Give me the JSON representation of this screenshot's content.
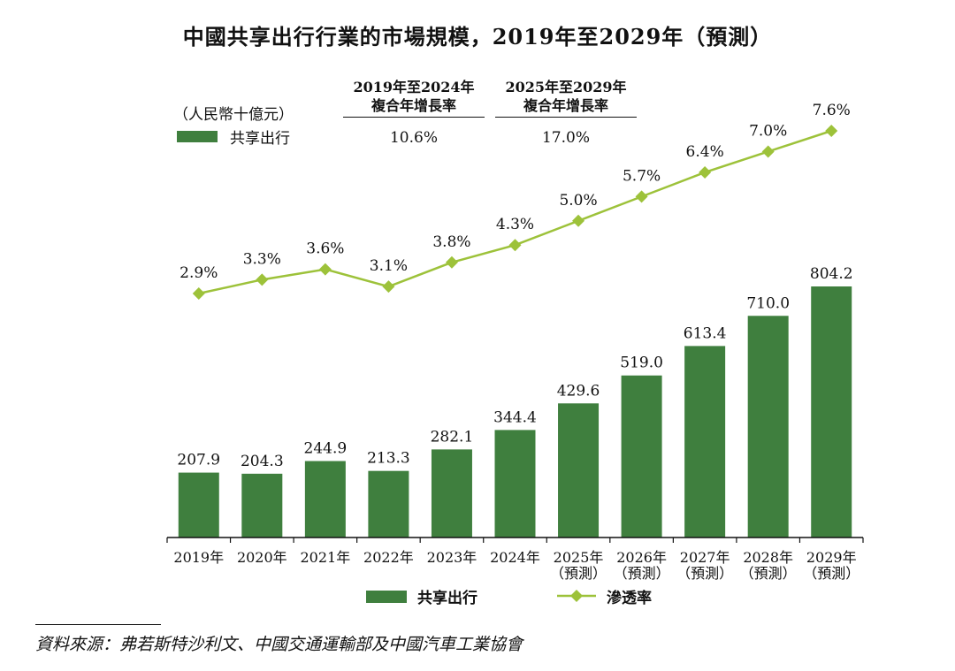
{
  "title": "中國共享出行行業的市場規模，2019年至2029年（預測）",
  "unit": "（人民幣十億元）",
  "legend_top": {
    "label": "共享出行",
    "color": "#3f7f3e"
  },
  "cagr": [
    {
      "head1": "2019年至2024年",
      "head2": "複合年增長率",
      "value": "10.6%"
    },
    {
      "head1": "2025年至2029年",
      "head2": "複合年增長率",
      "value": "17.0%"
    }
  ],
  "legend_bottom": {
    "bar_label": "共享出行",
    "line_label": "滲透率",
    "line_color": "#9dc23a"
  },
  "source": "資料來源：弗若斯特沙利文、中國交通運輸部及中國汽車工業協會",
  "chart_data": {
    "type": "bar",
    "categories": [
      [
        "2019年"
      ],
      [
        "2020年"
      ],
      [
        "2021年"
      ],
      [
        "2022年"
      ],
      [
        "2023年"
      ],
      [
        "2024年"
      ],
      [
        "2025年",
        "（預測）"
      ],
      [
        "2026年",
        "（預測）"
      ],
      [
        "2027年",
        "（預測）"
      ],
      [
        "2028年",
        "（預測）"
      ],
      [
        "2029年",
        "（預測）"
      ]
    ],
    "series": [
      {
        "name": "共享出行",
        "type": "bar",
        "color": "#3f7f3e",
        "values": [
          207.9,
          204.3,
          244.9,
          213.3,
          282.1,
          344.4,
          429.6,
          519.0,
          613.4,
          710.0,
          804.2
        ],
        "labels": [
          "207.9",
          "204.3",
          "244.9",
          "213.3",
          "282.1",
          "344.4",
          "429.6",
          "519.0",
          "613.4",
          "710.0",
          "804.2"
        ]
      },
      {
        "name": "滲透率",
        "type": "line",
        "color": "#9dc23a",
        "values": [
          2.9,
          3.3,
          3.6,
          3.1,
          3.8,
          4.3,
          5.0,
          5.7,
          6.4,
          7.0,
          7.6
        ],
        "labels": [
          "2.9%",
          "3.3%",
          "3.6%",
          "3.1%",
          "3.8%",
          "4.3%",
          "5.0%",
          "5.7%",
          "6.4%",
          "7.0%",
          "7.6%"
        ]
      }
    ],
    "grid": false
  }
}
